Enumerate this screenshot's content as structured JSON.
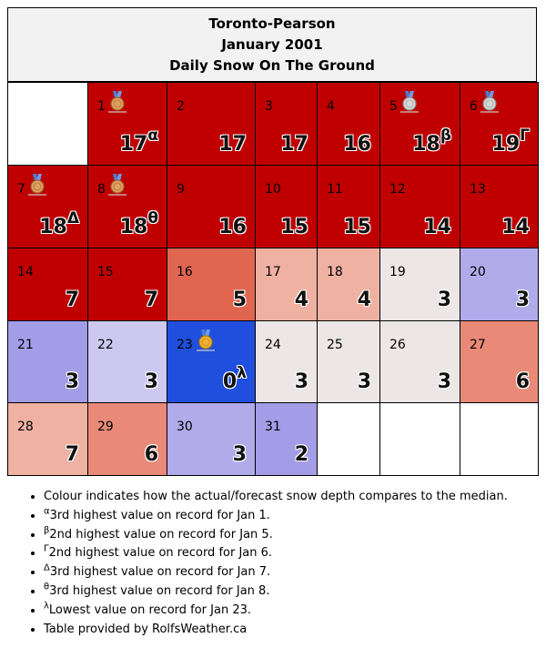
{
  "header": {
    "station": "Toronto-Pearson",
    "period": "January 2001",
    "metric": "Daily Snow On The Ground"
  },
  "colors": {
    "record_high": "#c00000",
    "well_above": "#e06650",
    "above": "#e98a78",
    "slightly_above": "#efb1a2",
    "near_median": "#ece6e6",
    "slightly_below": "#cdc8ef",
    "below": "#b1abe9",
    "well_below": "#a39ce6",
    "record_low": "#1f4fdc",
    "empty": "#ffffff"
  },
  "calendar": {
    "weeks": [
      [
        {
          "day": "",
          "value": "",
          "sup": "",
          "color": "empty",
          "medal": ""
        },
        {
          "day": "1",
          "value": "17",
          "sup": "α",
          "color": "record_high",
          "medal": "bronze"
        },
        {
          "day": "2",
          "value": "17",
          "sup": "",
          "color": "record_high",
          "medal": ""
        },
        {
          "day": "3",
          "value": "17",
          "sup": "",
          "color": "record_high",
          "medal": ""
        },
        {
          "day": "4",
          "value": "16",
          "sup": "",
          "color": "record_high",
          "medal": ""
        },
        {
          "day": "5",
          "value": "18",
          "sup": "β",
          "color": "record_high",
          "medal": "silver"
        },
        {
          "day": "6",
          "value": "19",
          "sup": "Γ",
          "color": "record_high",
          "medal": "silver"
        }
      ],
      [
        {
          "day": "7",
          "value": "18",
          "sup": "Δ",
          "color": "record_high",
          "medal": "bronze"
        },
        {
          "day": "8",
          "value": "18",
          "sup": "θ",
          "color": "record_high",
          "medal": "bronze"
        },
        {
          "day": "9",
          "value": "16",
          "sup": "",
          "color": "record_high",
          "medal": ""
        },
        {
          "day": "10",
          "value": "15",
          "sup": "",
          "color": "record_high",
          "medal": ""
        },
        {
          "day": "11",
          "value": "15",
          "sup": "",
          "color": "record_high",
          "medal": ""
        },
        {
          "day": "12",
          "value": "14",
          "sup": "",
          "color": "record_high",
          "medal": ""
        },
        {
          "day": "13",
          "value": "14",
          "sup": "",
          "color": "record_high",
          "medal": ""
        }
      ],
      [
        {
          "day": "14",
          "value": "7",
          "sup": "",
          "color": "record_high",
          "medal": ""
        },
        {
          "day": "15",
          "value": "7",
          "sup": "",
          "color": "record_high",
          "medal": ""
        },
        {
          "day": "16",
          "value": "5",
          "sup": "",
          "color": "well_above",
          "medal": ""
        },
        {
          "day": "17",
          "value": "4",
          "sup": "",
          "color": "slightly_above",
          "medal": ""
        },
        {
          "day": "18",
          "value": "4",
          "sup": "",
          "color": "slightly_above",
          "medal": ""
        },
        {
          "day": "19",
          "value": "3",
          "sup": "",
          "color": "near_median",
          "medal": ""
        },
        {
          "day": "20",
          "value": "3",
          "sup": "",
          "color": "below",
          "medal": ""
        }
      ],
      [
        {
          "day": "21",
          "value": "3",
          "sup": "",
          "color": "well_below",
          "medal": ""
        },
        {
          "day": "22",
          "value": "3",
          "sup": "",
          "color": "slightly_below",
          "medal": ""
        },
        {
          "day": "23",
          "value": "0",
          "sup": "λ",
          "color": "record_low",
          "medal": "gold"
        },
        {
          "day": "24",
          "value": "3",
          "sup": "",
          "color": "near_median",
          "medal": ""
        },
        {
          "day": "25",
          "value": "3",
          "sup": "",
          "color": "near_median",
          "medal": ""
        },
        {
          "day": "26",
          "value": "3",
          "sup": "",
          "color": "near_median",
          "medal": ""
        },
        {
          "day": "27",
          "value": "6",
          "sup": "",
          "color": "above",
          "medal": ""
        }
      ],
      [
        {
          "day": "28",
          "value": "7",
          "sup": "",
          "color": "slightly_above",
          "medal": ""
        },
        {
          "day": "29",
          "value": "6",
          "sup": "",
          "color": "above",
          "medal": ""
        },
        {
          "day": "30",
          "value": "3",
          "sup": "",
          "color": "below",
          "medal": ""
        },
        {
          "day": "31",
          "value": "2",
          "sup": "",
          "color": "well_below",
          "medal": ""
        },
        {
          "day": "",
          "value": "",
          "sup": "",
          "color": "empty",
          "medal": ""
        },
        {
          "day": "",
          "value": "",
          "sup": "",
          "color": "empty",
          "medal": ""
        },
        {
          "day": "",
          "value": "",
          "sup": "",
          "color": "empty",
          "medal": ""
        }
      ]
    ]
  },
  "notes": [
    {
      "sup": "",
      "text": "Colour indicates how the actual/forecast snow depth compares to the median."
    },
    {
      "sup": "α",
      "text": "3rd highest value on record for Jan 1."
    },
    {
      "sup": "β",
      "text": "2nd highest value on record for Jan 5."
    },
    {
      "sup": "Γ",
      "text": "2nd highest value on record for Jan 6."
    },
    {
      "sup": "Δ",
      "text": "3rd highest value on record for Jan 7."
    },
    {
      "sup": "θ",
      "text": "3rd highest value on record for Jan 8."
    },
    {
      "sup": "λ",
      "text": "Lowest value on record for Jan 23."
    },
    {
      "sup": "",
      "text": "Table provided by RolfsWeather.ca"
    }
  ]
}
